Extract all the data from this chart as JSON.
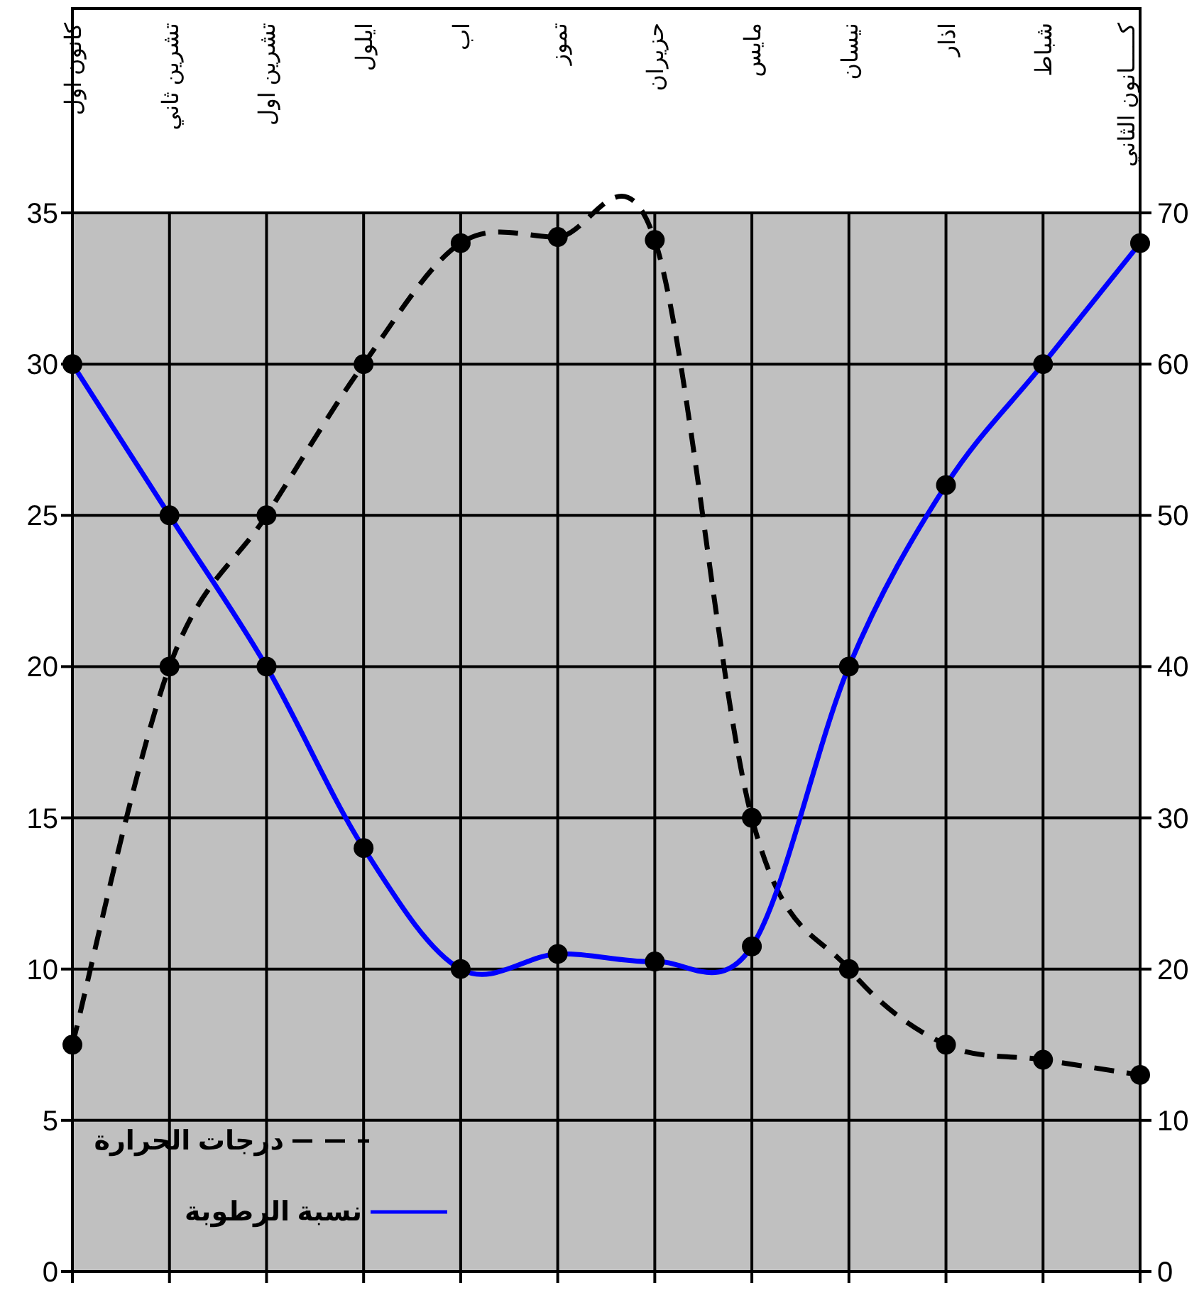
{
  "chart_data": {
    "type": "line",
    "categories": [
      "كانون اول",
      "تشرين ثاني",
      "تشرين اول",
      "ايلول",
      "اب",
      "تموز",
      "حزيران",
      "مايس",
      "نيسان",
      "اذار",
      "شباط",
      "كـــــانون الثاني"
    ],
    "series": [
      {
        "name": "درجات الحرارة",
        "color": "#000000",
        "line_style": "dashed",
        "values": [
          7.5,
          20,
          25,
          30,
          34,
          34.2,
          34.1,
          15,
          10,
          7.5,
          7,
          6.5
        ]
      },
      {
        "name": "نسبة الرطوبة",
        "color": "#0000ff",
        "line_style": "solid",
        "axis": "y2",
        "values": [
          60,
          50,
          40,
          28,
          20,
          21,
          20.5,
          21.5,
          40,
          52,
          60,
          68
        ]
      }
    ],
    "ylim": [
      0,
      35
    ],
    "yticks": [
      0,
      5,
      10,
      15,
      20,
      25,
      30,
      35
    ],
    "y2lim": [
      0,
      70
    ],
    "y2ticks": [
      0,
      10,
      20,
      30,
      40,
      50,
      60,
      70
    ],
    "grid": true,
    "legend": "bottom left",
    "marker": "circle"
  }
}
